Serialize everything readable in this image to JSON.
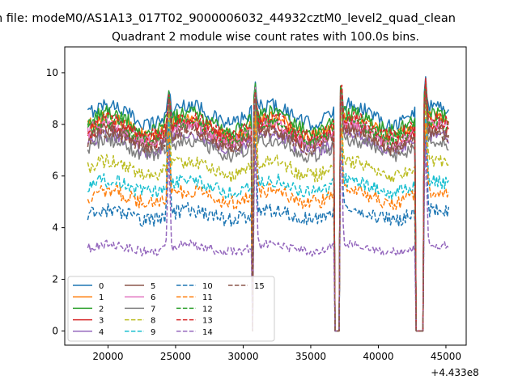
{
  "chart_data": {
    "type": "line",
    "suptitle": "n file: modeM0/AS1A13_017T02_9000006032_44932cztM0_level2_quad_clean",
    "title": "Quadrant 2 module wise count rates with 100.0s bins.",
    "xlabel": "",
    "ylabel": "",
    "x_offset_label": "+4.433e8",
    "xlim": [
      16800,
      46500
    ],
    "ylim": [
      -0.55,
      11.0
    ],
    "xticks": [
      20000,
      25000,
      30000,
      35000,
      40000,
      45000
    ],
    "yticks": [
      0,
      2,
      4,
      6,
      8,
      10
    ],
    "x_start": 18500,
    "x_end": 45200,
    "bin": 100,
    "grid": false,
    "legend": {
      "placement": "lower-left",
      "columns": 4
    },
    "gaps": [
      [
        30650,
        30750
      ],
      [
        36750,
        37150
      ],
      [
        42800,
        43350
      ]
    ],
    "spikes": [
      24500,
      30900,
      37250,
      43500
    ],
    "series": [
      {
        "name": "0",
        "color": "#1f77b4",
        "dashed": false,
        "base": 8.4
      },
      {
        "name": "1",
        "color": "#ff7f0e",
        "dashed": false,
        "base": 7.9
      },
      {
        "name": "2",
        "color": "#2ca02c",
        "dashed": false,
        "base": 8.1
      },
      {
        "name": "3",
        "color": "#d62728",
        "dashed": false,
        "base": 7.6
      },
      {
        "name": "4",
        "color": "#9467bd",
        "dashed": false,
        "base": 7.3
      },
      {
        "name": "5",
        "color": "#8c564b",
        "dashed": false,
        "base": 7.5
      },
      {
        "name": "6",
        "color": "#e377c2",
        "dashed": false,
        "base": 7.7
      },
      {
        "name": "7",
        "color": "#7f7f7f",
        "dashed": false,
        "base": 7.1
      },
      {
        "name": "8",
        "color": "#bcbd22",
        "dashed": true,
        "base": 6.3
      },
      {
        "name": "9",
        "color": "#17becf",
        "dashed": true,
        "base": 5.6
      },
      {
        "name": "10",
        "color": "#1f77b4",
        "dashed": true,
        "base": 4.5
      },
      {
        "name": "11",
        "color": "#ff7f0e",
        "dashed": true,
        "base": 5.2
      },
      {
        "name": "12",
        "color": "#2ca02c",
        "dashed": true,
        "base": 7.8
      },
      {
        "name": "13",
        "color": "#d62728",
        "dashed": true,
        "base": 7.9
      },
      {
        "name": "14",
        "color": "#9467bd",
        "dashed": true,
        "base": 3.2
      },
      {
        "name": "15",
        "color": "#8c564b",
        "dashed": true,
        "base": 7.4
      }
    ]
  }
}
